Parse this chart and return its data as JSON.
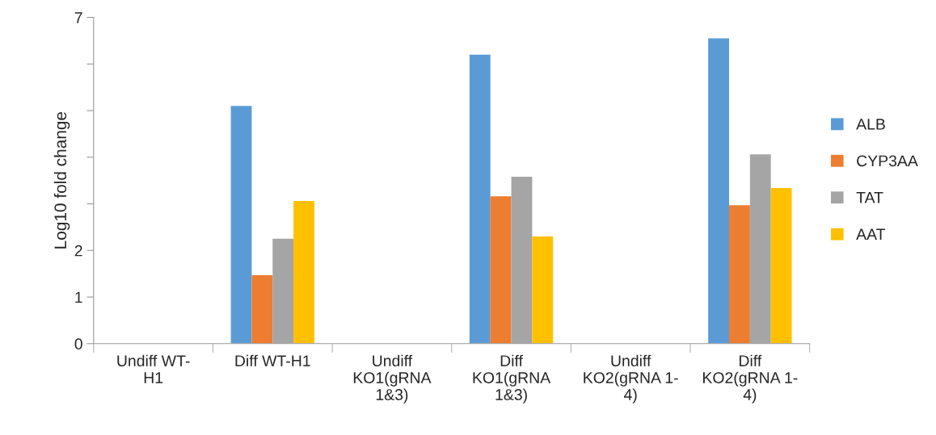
{
  "chart_data": {
    "type": "bar",
    "ylabel": "Log10 fold change",
    "categories": [
      "Undiff WT-\nH1",
      "Diff WT-H1",
      "Undiff\nKO1(gRNA\n1&3)",
      "Diff\nKO1(gRNA\n1&3)",
      "Undiff\nKO2(gRNA 1-\n4)",
      "Diff\nKO2(gRNA 1-\n4)"
    ],
    "series": [
      {
        "name": "ALB",
        "color": "#5b9bd5",
        "values": [
          null,
          5.1,
          null,
          6.2,
          null,
          6.55
        ]
      },
      {
        "name": "CYP3AA",
        "color": "#ed7d31",
        "values": [
          null,
          1.47,
          null,
          3.16,
          null,
          2.97
        ]
      },
      {
        "name": "TAT",
        "color": "#a5a5a5",
        "values": [
          null,
          2.25,
          null,
          3.58,
          null,
          4.06
        ]
      },
      {
        "name": "AAT",
        "color": "#ffc000",
        "values": [
          null,
          3.06,
          null,
          2.3,
          null,
          3.34
        ]
      }
    ],
    "ylim": [
      0,
      7
    ],
    "yticks": [
      0,
      1,
      2,
      {
        "value": 3,
        "label": null
      },
      {
        "value": 4,
        "label": null
      },
      {
        "value": 5,
        "label": null
      },
      {
        "value": 6,
        "label": null
      },
      7
    ],
    "grid": false,
    "legend": "right"
  }
}
